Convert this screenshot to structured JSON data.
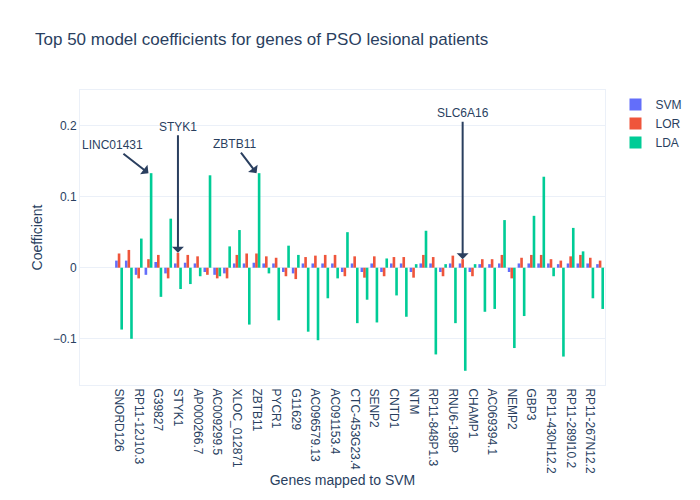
{
  "chart_data": {
    "type": "bar",
    "title": "Top 50 model coefficients for genes of PSO lesional patients",
    "x_label": "Genes mapped to SVM",
    "y_label": "Coefficient",
    "categories": [
      "SNORD126",
      null,
      "RP11-12J10.3",
      null,
      "G39827",
      null,
      "STYK1",
      null,
      "AP000266.7",
      null,
      "AC009299.5",
      null,
      "XLOC_012871",
      null,
      "ZBTB11",
      null,
      "PYCR1",
      null,
      "G11629",
      null,
      "AC096579.13",
      null,
      "AC091153.4",
      null,
      "CTC-453G23.4",
      null,
      "SENP2",
      null,
      "CNTD1",
      null,
      "NTM",
      null,
      "RP11-848P1.3",
      null,
      "RNU6-198P",
      null,
      "CHAMP1",
      null,
      "AC069394.1",
      null,
      "NEMP2",
      null,
      "GBP3",
      null,
      "RP11-430H12.2",
      null,
      "RP11-289I10.2",
      null,
      "RP11-267N12.2",
      null
    ],
    "series": [
      {
        "name": "SVM",
        "color": "#636efa",
        "values": [
          0.01,
          0.01,
          -0.01,
          -0.01,
          0.008,
          -0.008,
          0.006,
          0.007,
          0.006,
          -0.006,
          -0.01,
          -0.008,
          0.006,
          0.006,
          0.007,
          0.006,
          0.006,
          -0.006,
          -0.008,
          0.006,
          0.006,
          0.006,
          0.006,
          -0.006,
          0.006,
          -0.006,
          0.006,
          -0.006,
          0.006,
          0.006,
          -0.006,
          0.006,
          0.006,
          -0.006,
          0.006,
          0.006,
          -0.006,
          0.005,
          0.005,
          0.006,
          -0.006,
          0.006,
          0.006,
          0.006,
          0.006,
          0.005,
          0.006,
          0.006,
          0.006,
          0.005
        ]
      },
      {
        "name": "LOR",
        "color": "#EF553B",
        "values": [
          0.02,
          0.025,
          -0.015,
          0.012,
          0.018,
          -0.015,
          0.021,
          0.018,
          0.016,
          -0.01,
          -0.015,
          -0.015,
          0.018,
          0.02,
          0.02,
          0.016,
          0.014,
          -0.012,
          -0.016,
          0.015,
          0.017,
          0.018,
          0.018,
          -0.012,
          0.016,
          -0.014,
          0.016,
          -0.012,
          0.015,
          0.015,
          -0.014,
          0.018,
          0.015,
          -0.012,
          0.017,
          0.012,
          -0.012,
          0.012,
          0.012,
          0.018,
          -0.015,
          0.014,
          0.018,
          0.018,
          0.012,
          0.01,
          0.016,
          0.018,
          0.014,
          0.01
        ]
      },
      {
        "name": "LDA",
        "color": "#00cc96",
        "values": [
          -0.087,
          -0.1,
          0.041,
          0.133,
          -0.041,
          0.069,
          -0.03,
          -0.023,
          -0.012,
          0.13,
          -0.012,
          0.03,
          0.053,
          -0.08,
          0.133,
          -0.008,
          -0.074,
          0.031,
          0.018,
          -0.09,
          -0.102,
          -0.043,
          -0.015,
          0.05,
          -0.078,
          -0.045,
          -0.077,
          0.013,
          -0.039,
          -0.069,
          0.005,
          0.052,
          -0.122,
          0.005,
          -0.078,
          -0.145,
          0.005,
          -0.062,
          -0.058,
          0.067,
          -0.113,
          -0.068,
          0.073,
          0.128,
          -0.012,
          -0.125,
          0.056,
          0.023,
          -0.043,
          -0.058
        ]
      }
    ],
    "annotations": [
      {
        "text": "LINC01431",
        "x": 3
      },
      {
        "text": "STYK1",
        "x": 6
      },
      {
        "text": "ZBTB11",
        "x": 14
      },
      {
        "text": "SLC6A16",
        "x": 35
      }
    ],
    "ylim": [
      -0.165,
      0.25
    ],
    "yticks": [
      {
        "value": -0.1,
        "label": "−0.1"
      },
      0,
      0.1,
      0.2
    ],
    "grid": true,
    "legend": "top-right"
  }
}
